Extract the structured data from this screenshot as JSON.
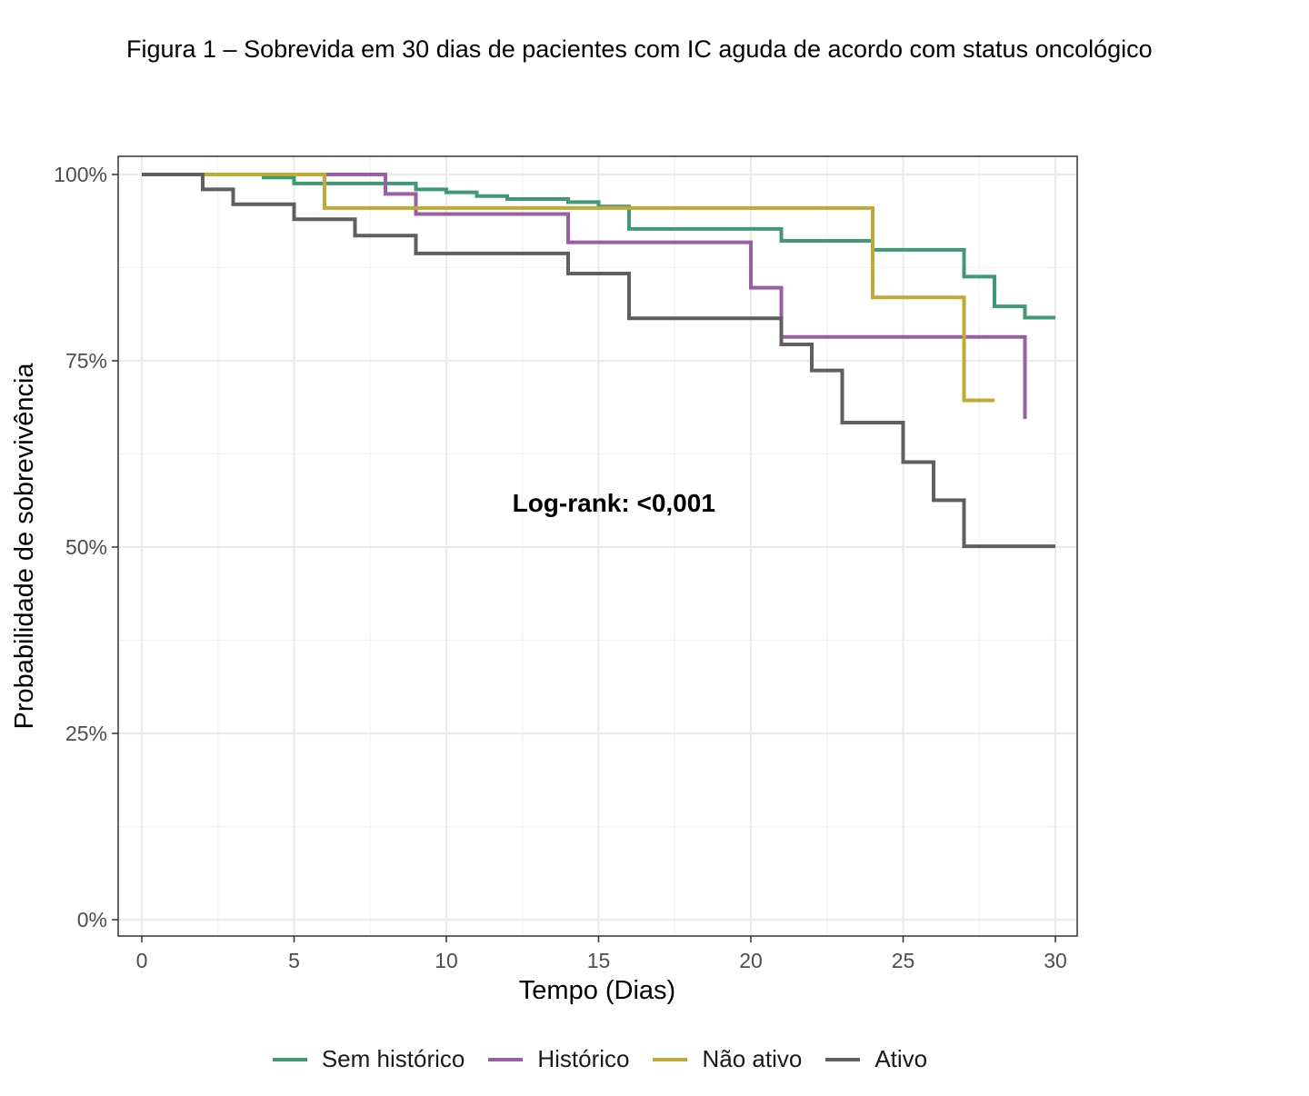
{
  "caption": "Figura 1 – Sobrevida em 30 dias de pacientes com IC aguda de acordo com status oncológico",
  "chart_data": {
    "type": "line",
    "step": true,
    "title": "",
    "xlabel": "Tempo (Dias)",
    "ylabel": "Probabilidade de sobrevivência",
    "xlim": [
      0,
      30
    ],
    "ylim": [
      0,
      1
    ],
    "xticks": [
      0,
      5,
      10,
      15,
      20,
      25,
      30
    ],
    "yticks": [
      0,
      0.25,
      0.5,
      0.75,
      1
    ],
    "ytick_labels": [
      "0%",
      "25%",
      "50%",
      "75%",
      "100%"
    ],
    "grid": true,
    "legend_position": "bottom",
    "annotation": "Log-rank: <0,001",
    "annotation_at": [
      15.5,
      0.56
    ],
    "series": [
      {
        "name": "Sem histórico",
        "color": "#3f9a74",
        "x": [
          0,
          4,
          5,
          9,
          10,
          11,
          12,
          14,
          15,
          16,
          21,
          24,
          27,
          28,
          29,
          30
        ],
        "y": [
          1.0,
          0.996,
          0.988,
          0.98,
          0.976,
          0.971,
          0.967,
          0.963,
          0.957,
          0.927,
          0.911,
          0.899,
          0.863,
          0.823,
          0.808,
          0.808
        ]
      },
      {
        "name": "Histórico",
        "color": "#9a5ea6",
        "x": [
          0,
          8,
          9,
          14,
          20,
          21,
          29,
          29
        ],
        "y": [
          1.0,
          0.974,
          0.947,
          0.909,
          0.848,
          0.782,
          0.782,
          0.672
        ]
      },
      {
        "name": "Não ativo",
        "color": "#bfab33",
        "x": [
          0,
          6,
          24,
          27,
          28
        ],
        "y": [
          1.0,
          0.955,
          0.835,
          0.697,
          0.697
        ]
      },
      {
        "name": "Ativo",
        "color": "#5f5f5f",
        "x": [
          0,
          2,
          3,
          5,
          7,
          9,
          14,
          16,
          21,
          22,
          23,
          25,
          26,
          27,
          30
        ],
        "y": [
          1.0,
          0.98,
          0.96,
          0.94,
          0.918,
          0.894,
          0.867,
          0.807,
          0.772,
          0.737,
          0.667,
          0.614,
          0.563,
          0.501,
          0.501
        ]
      }
    ]
  }
}
